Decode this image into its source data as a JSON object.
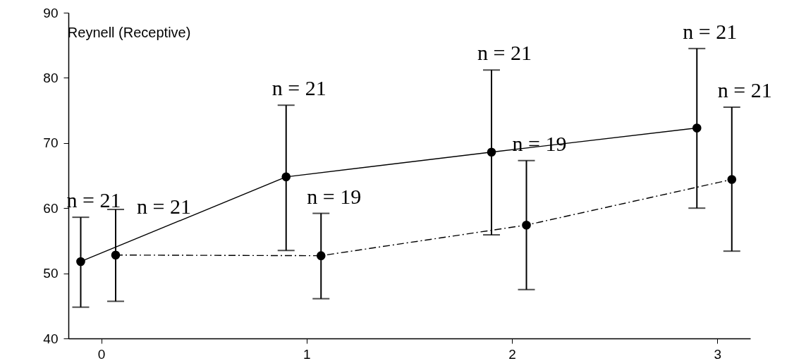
{
  "chart_data": {
    "type": "line",
    "title": "Reynell (Receptive)",
    "series": [
      {
        "color": "#000000",
        "line_style": "solid",
        "x": [
          -0.1,
          0.9,
          1.9,
          2.9
        ],
        "values": [
          51.8,
          64.8,
          68.6,
          72.3
        ],
        "errors": [
          [
            44.8,
            58.6
          ],
          [
            53.5,
            75.8
          ],
          [
            55.9,
            81.2
          ],
          [
            60.0,
            84.5
          ]
        ]
      },
      {
        "color": "#000000",
        "line_style": "dashed",
        "x": [
          0.07,
          1.07,
          2.07,
          3.07
        ],
        "values": [
          52.8,
          52.7,
          57.4,
          64.4
        ],
        "errors": [
          [
            45.7,
            59.8
          ],
          [
            46.1,
            59.2
          ],
          [
            47.5,
            67.3
          ],
          [
            53.4,
            75.5
          ]
        ]
      }
    ],
    "xlim": [
      -0.16,
      3.16
    ],
    "xticks": [
      0,
      1,
      2,
      3
    ],
    "ylim": [
      40,
      90
    ],
    "yticks": [
      40,
      50,
      60,
      70,
      80,
      90
    ],
    "marker": "circle",
    "grid": false,
    "legend": false,
    "annotations": [
      {
        "text": "n = 21",
        "x": -0.1,
        "y": 58.6
      },
      {
        "text": "n = 21",
        "x": 0.07,
        "y": 59.8
      },
      {
        "text": "n = 21",
        "x": 0.9,
        "y": 75.8
      },
      {
        "text": "n = 19",
        "x": 1.07,
        "y": 59.2
      },
      {
        "text": "n = 21",
        "x": 1.9,
        "y": 81.2
      },
      {
        "text": "n = 19",
        "x": 2.07,
        "y": 67.3
      },
      {
        "text": "n = 21",
        "x": 2.9,
        "y": 84.5
      },
      {
        "text": "n = 21",
        "x": 3.07,
        "y": 75.5
      }
    ]
  }
}
